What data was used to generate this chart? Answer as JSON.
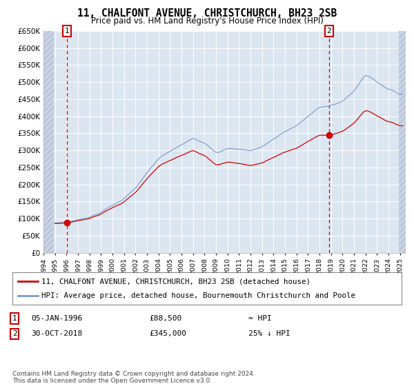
{
  "title": "11, CHALFONT AVENUE, CHRISTCHURCH, BH23 2SB",
  "subtitle": "Price paid vs. HM Land Registry's House Price Index (HPI)",
  "hpi_color": "#7799cc",
  "price_color": "#cc0000",
  "marker_color": "#cc0000",
  "annotation_color": "#cc0000",
  "bg_color": "#dce6f1",
  "hatch_color": "#c8d4e4",
  "ylim": [
    0,
    650000
  ],
  "yticks": [
    0,
    50000,
    100000,
    150000,
    200000,
    250000,
    300000,
    350000,
    400000,
    450000,
    500000,
    550000,
    600000,
    650000
  ],
  "ytick_labels": [
    "£0",
    "£50K",
    "£100K",
    "£150K",
    "£200K",
    "£250K",
    "£300K",
    "£350K",
    "£400K",
    "£450K",
    "£500K",
    "£550K",
    "£600K",
    "£650K"
  ],
  "legend_label_price": "11, CHALFONT AVENUE, CHRISTCHURCH, BH23 2SB (detached house)",
  "legend_label_hpi": "HPI: Average price, detached house, Bournemouth Christchurch and Poole",
  "annotation1_date": "05-JAN-1996",
  "annotation1_price": "£88,500",
  "annotation1_note": "≈ HPI",
  "annotation2_date": "30-OCT-2018",
  "annotation2_price": "£345,000",
  "annotation2_note": "25% ↓ HPI",
  "footer": "Contains HM Land Registry data © Crown copyright and database right 2024.\nThis data is licensed under the Open Government Licence v3.0.",
  "sale1_x": 1996.04,
  "sale1_y": 88500,
  "sale2_x": 2018.83,
  "sale2_y": 345000,
  "xlim_left": 1994.0,
  "xlim_right": 2025.5,
  "hatch_left_end": 1994.92,
  "hatch_right_start": 2024.92
}
